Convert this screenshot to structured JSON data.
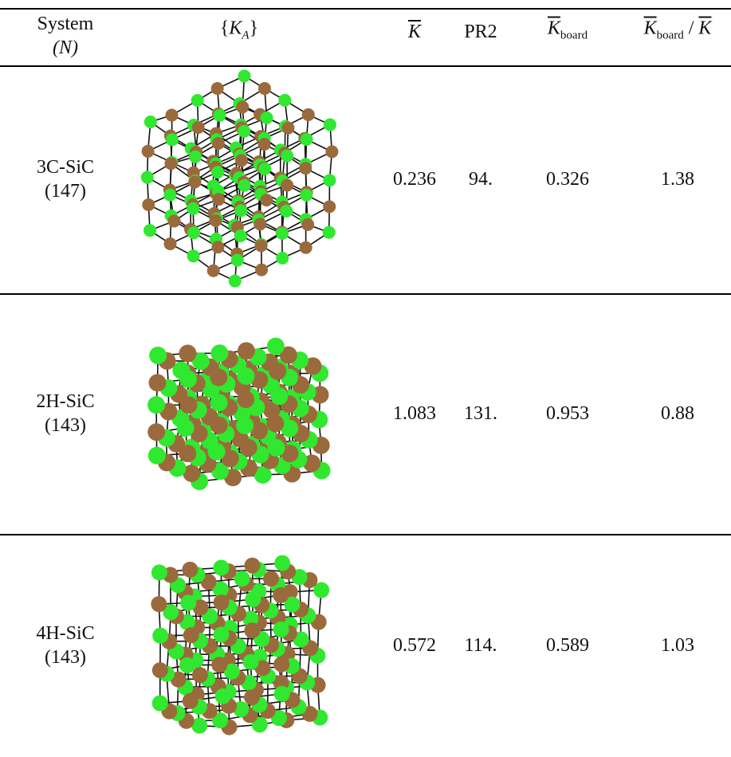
{
  "table": {
    "columns": [
      {
        "text": "System",
        "second": "(N)"
      },
      {
        "pre": "{",
        "symbol": "K",
        "sub": "A",
        "post": "}"
      },
      {
        "symbol": "K"
      },
      {
        "text": "PR2"
      },
      {
        "symbol": "K",
        "sub": "board"
      },
      {
        "symbol": "K",
        "sub": "board",
        "sep": "/",
        "symbol2": "K"
      }
    ],
    "rows": [
      {
        "system": "3C-SiC",
        "n": "(147)",
        "values": [
          "0.236",
          "94.",
          "0.326",
          "1.38"
        ]
      },
      {
        "system": "2H-SiC",
        "n": "(143)",
        "values": [
          "1.083",
          "131.",
          "0.953",
          "0.88"
        ]
      },
      {
        "system": "4H-SiC",
        "n": "(143)",
        "values": [
          "0.572",
          "114.",
          "0.589",
          "1.03"
        ]
      }
    ]
  }
}
